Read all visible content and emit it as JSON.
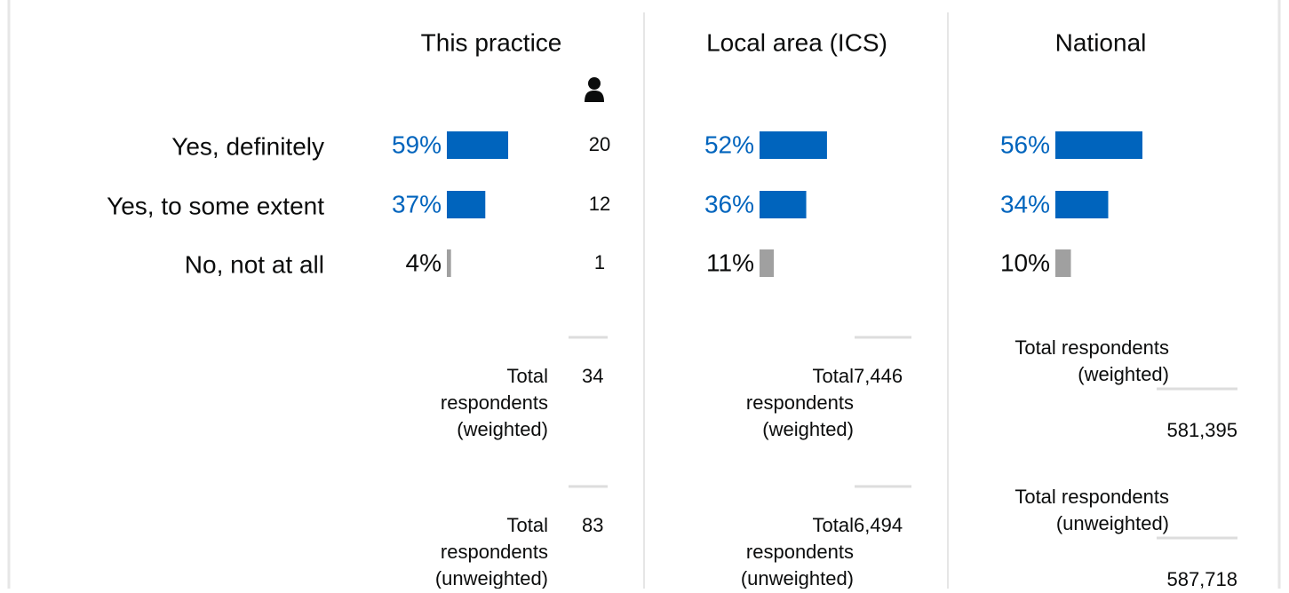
{
  "columns": [
    {
      "title": "This practice",
      "rows": [
        {
          "value": 59,
          "label": "59%",
          "color": "#0064bd"
        },
        {
          "value": 37,
          "label": "37%",
          "color": "#0064bd"
        },
        {
          "value": 4,
          "label": "4%",
          "color": "#a0a0a0"
        }
      ],
      "counts": [
        "20",
        "12",
        "1"
      ],
      "totals": [
        {
          "label": [
            "Total",
            "respondents",
            "(weighted)"
          ],
          "value": "34"
        },
        {
          "label": [
            "Total",
            "respondents",
            "(unweighted)"
          ],
          "value": "83"
        }
      ]
    },
    {
      "title": "Local area (ICS)",
      "rows": [
        {
          "value": 52,
          "label": "52%",
          "color": "#0064bd"
        },
        {
          "value": 36,
          "label": "36%",
          "color": "#0064bd"
        },
        {
          "value": 11,
          "label": "11%",
          "color": "#a0a0a0"
        }
      ],
      "totals": [
        {
          "label": [
            "Total",
            "respondents",
            "(weighted)"
          ],
          "value": "7,446"
        },
        {
          "label": [
            "Total",
            "respondents",
            "(unweighted)"
          ],
          "value": "6,494"
        }
      ]
    },
    {
      "title": "National",
      "rows": [
        {
          "value": 56,
          "label": "56%",
          "color": "#0064bd"
        },
        {
          "value": 34,
          "label": "34%",
          "color": "#0064bd"
        },
        {
          "value": 10,
          "label": "10%",
          "color": "#a0a0a0"
        }
      ],
      "totals": [
        {
          "label": [
            "Total respondents",
            "(weighted)"
          ],
          "value": "581,395"
        },
        {
          "label": [
            "Total respondents",
            "(unweighted)"
          ],
          "value": "587,718"
        }
      ]
    }
  ],
  "row_labels": [
    "Yes, definitely",
    "Yes, to some extent",
    "No, not at all"
  ]
}
